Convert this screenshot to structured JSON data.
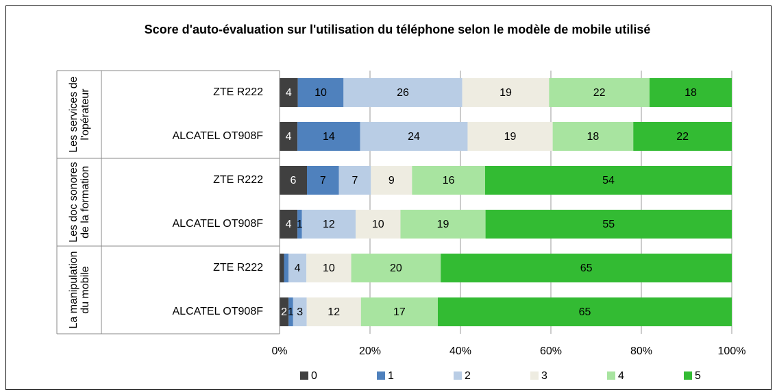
{
  "chart_data": {
    "type": "stacked100_barh",
    "title": "Score d'auto-évaluation sur l'utilisation du téléphone selon le modèle de mobile utilisé",
    "groups": [
      "Les services de l'opérateur",
      "Les doc sonores de la formation",
      "La manipulation du mobile"
    ],
    "categories": [
      "ZTE R222",
      "ALCATEL OT908F",
      "ZTE R222",
      "ALCATEL OT908F",
      "ZTE R222",
      "ALCATEL OT908F"
    ],
    "series": [
      {
        "name": "0",
        "color": "#404040",
        "values": [
          4,
          4,
          6,
          4,
          1,
          2
        ],
        "value_labels": [
          "4",
          "4",
          "6",
          "4",
          null,
          "2"
        ]
      },
      {
        "name": "1",
        "color": "#4f81bd",
        "values": [
          10,
          14,
          7,
          1,
          1,
          1
        ],
        "value_labels": [
          "10",
          "14",
          "7",
          "1",
          null,
          "1"
        ]
      },
      {
        "name": "2",
        "color": "#b9cde5",
        "values": [
          26,
          24,
          7,
          12,
          4,
          3
        ]
      },
      {
        "name": "3",
        "color": "#eeece1",
        "values": [
          19,
          19,
          9,
          10,
          10,
          12
        ]
      },
      {
        "name": "4",
        "color": "#a8e4a0",
        "values": [
          22,
          18,
          16,
          19,
          20,
          17
        ]
      },
      {
        "name": "5",
        "color": "#33bb33",
        "values": [
          18,
          22,
          54,
          55,
          65,
          65
        ]
      }
    ],
    "xlim": [
      0,
      100
    ],
    "xticks": [
      {
        "value": 0,
        "label": "0%"
      },
      {
        "value": 20,
        "label": "20%"
      },
      {
        "value": 40,
        "label": "40%"
      },
      {
        "value": 60,
        "label": "60%"
      },
      {
        "value": 80,
        "label": "80%"
      },
      {
        "value": 100,
        "label": "100%"
      }
    ],
    "grid": true,
    "legend": "bottom"
  }
}
